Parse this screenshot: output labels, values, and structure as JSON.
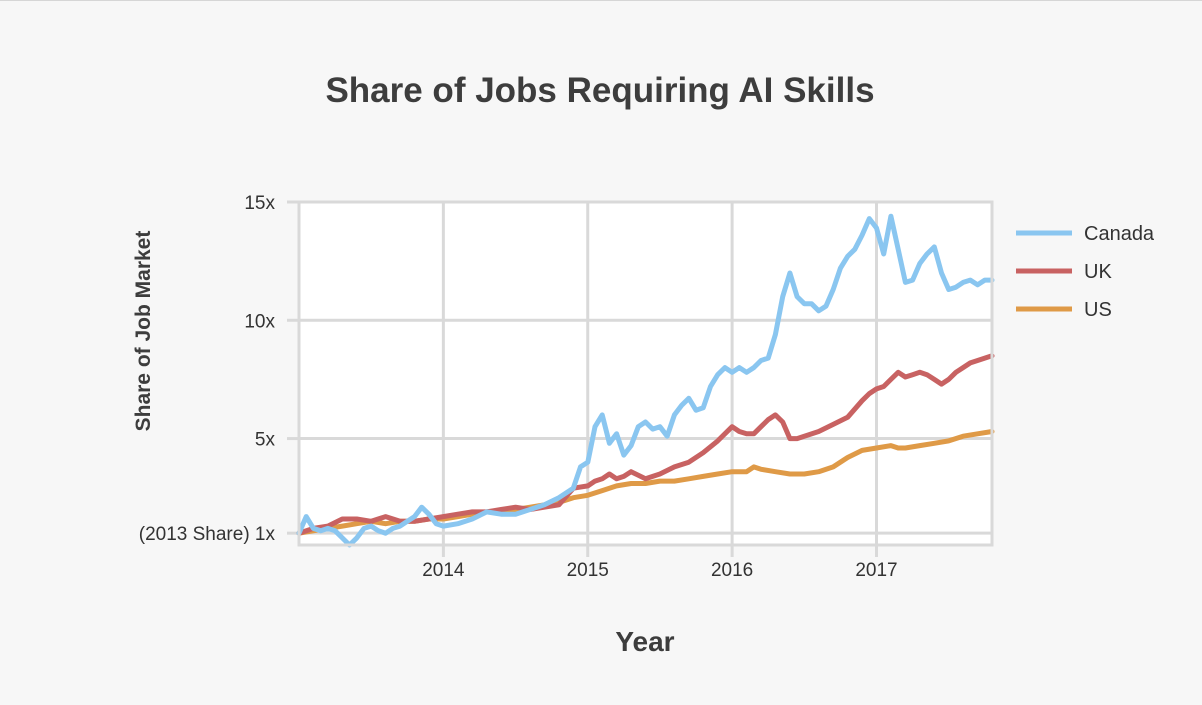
{
  "chart_data": {
    "type": "line",
    "title": "Share of Jobs Requiring AI Skills",
    "xlabel": "Year",
    "ylabel": "Share of Job Market",
    "xlim": [
      2013.0,
      2017.8
    ],
    "ylim": [
      0.5,
      15.0
    ],
    "x_ticks": [
      {
        "value": 2014,
        "label": "2014"
      },
      {
        "value": 2015,
        "label": "2015"
      },
      {
        "value": 2016,
        "label": "2016"
      },
      {
        "value": 2017,
        "label": "2017"
      }
    ],
    "y_ticks": [
      {
        "value": 1,
        "label": "(2013 Share) 1x"
      },
      {
        "value": 5,
        "label": "5x"
      },
      {
        "value": 10,
        "label": "10x"
      },
      {
        "value": 15,
        "label": "15x"
      }
    ],
    "grid": true,
    "legend_position": "right",
    "series": [
      {
        "name": "Canada",
        "color": "#8ac6f0",
        "x": [
          2013.0,
          2013.05,
          2013.1,
          2013.15,
          2013.2,
          2013.25,
          2013.3,
          2013.35,
          2013.4,
          2013.45,
          2013.5,
          2013.55,
          2013.6,
          2013.65,
          2013.7,
          2013.75,
          2013.8,
          2013.85,
          2013.9,
          2013.95,
          2014.0,
          2014.1,
          2014.2,
          2014.3,
          2014.4,
          2014.5,
          2014.6,
          2014.7,
          2014.8,
          2014.9,
          2014.95,
          2015.0,
          2015.05,
          2015.1,
          2015.15,
          2015.2,
          2015.25,
          2015.3,
          2015.35,
          2015.4,
          2015.45,
          2015.5,
          2015.55,
          2015.6,
          2015.65,
          2015.7,
          2015.75,
          2015.8,
          2015.85,
          2015.9,
          2015.95,
          2016.0,
          2016.05,
          2016.1,
          2016.15,
          2016.2,
          2016.25,
          2016.3,
          2016.35,
          2016.4,
          2016.45,
          2016.5,
          2016.55,
          2016.6,
          2016.65,
          2016.7,
          2016.75,
          2016.8,
          2016.85,
          2016.9,
          2016.95,
          2017.0,
          2017.05,
          2017.1,
          2017.15,
          2017.2,
          2017.25,
          2017.3,
          2017.35,
          2017.4,
          2017.45,
          2017.5,
          2017.55,
          2017.6,
          2017.65,
          2017.7,
          2017.75,
          2017.8
        ],
        "y": [
          1.0,
          1.7,
          1.2,
          1.1,
          1.2,
          1.1,
          0.8,
          0.5,
          0.8,
          1.2,
          1.3,
          1.1,
          1.0,
          1.2,
          1.3,
          1.5,
          1.7,
          2.1,
          1.8,
          1.4,
          1.3,
          1.4,
          1.6,
          1.9,
          1.8,
          1.8,
          2.0,
          2.2,
          2.5,
          2.9,
          3.8,
          4.0,
          5.5,
          6.0,
          4.8,
          5.2,
          4.3,
          4.7,
          5.5,
          5.7,
          5.4,
          5.5,
          5.1,
          6.0,
          6.4,
          6.7,
          6.2,
          6.3,
          7.2,
          7.7,
          8.0,
          7.8,
          8.0,
          7.8,
          8.0,
          8.3,
          8.4,
          9.4,
          11.0,
          12.0,
          11.0,
          10.7,
          10.7,
          10.4,
          10.6,
          11.3,
          12.2,
          12.7,
          13.0,
          13.6,
          14.3,
          13.9,
          12.8,
          14.4,
          13.0,
          11.6,
          11.7,
          12.4,
          12.8,
          13.1,
          12.0,
          11.3,
          11.4,
          11.6,
          11.7,
          11.5,
          11.7,
          11.7
        ]
      },
      {
        "name": "UK",
        "color": "#c86262",
        "x": [
          2013.0,
          2013.1,
          2013.2,
          2013.3,
          2013.4,
          2013.5,
          2013.6,
          2013.7,
          2013.8,
          2013.9,
          2014.0,
          2014.1,
          2014.2,
          2014.3,
          2014.4,
          2014.5,
          2014.6,
          2014.7,
          2014.8,
          2014.9,
          2015.0,
          2015.05,
          2015.1,
          2015.15,
          2015.2,
          2015.25,
          2015.3,
          2015.4,
          2015.5,
          2015.6,
          2015.7,
          2015.8,
          2015.9,
          2016.0,
          2016.05,
          2016.1,
          2016.15,
          2016.2,
          2016.25,
          2016.3,
          2016.35,
          2016.4,
          2016.45,
          2016.5,
          2016.6,
          2016.7,
          2016.8,
          2016.9,
          2016.95,
          2017.0,
          2017.05,
          2017.1,
          2017.15,
          2017.2,
          2017.25,
          2017.3,
          2017.35,
          2017.4,
          2017.45,
          2017.5,
          2017.55,
          2017.6,
          2017.65,
          2017.7,
          2017.75,
          2017.8
        ],
        "y": [
          1.0,
          1.2,
          1.3,
          1.6,
          1.6,
          1.5,
          1.7,
          1.5,
          1.5,
          1.6,
          1.7,
          1.8,
          1.9,
          1.9,
          2.0,
          2.1,
          2.0,
          2.1,
          2.2,
          2.9,
          3.0,
          3.2,
          3.3,
          3.5,
          3.3,
          3.4,
          3.6,
          3.3,
          3.5,
          3.8,
          4.0,
          4.4,
          4.9,
          5.5,
          5.3,
          5.2,
          5.2,
          5.5,
          5.8,
          6.0,
          5.7,
          5.0,
          5.0,
          5.1,
          5.3,
          5.6,
          5.9,
          6.6,
          6.9,
          7.1,
          7.2,
          7.5,
          7.8,
          7.6,
          7.7,
          7.8,
          7.7,
          7.5,
          7.3,
          7.5,
          7.8,
          8.0,
          8.2,
          8.3,
          8.4,
          8.5
        ]
      },
      {
        "name": "US",
        "color": "#df9a47",
        "x": [
          2013.0,
          2013.1,
          2013.2,
          2013.3,
          2013.4,
          2013.5,
          2013.6,
          2013.7,
          2013.8,
          2013.9,
          2014.0,
          2014.1,
          2014.2,
          2014.3,
          2014.4,
          2014.5,
          2014.6,
          2014.7,
          2014.8,
          2014.9,
          2015.0,
          2015.1,
          2015.2,
          2015.3,
          2015.4,
          2015.5,
          2015.6,
          2015.7,
          2015.8,
          2015.9,
          2016.0,
          2016.1,
          2016.15,
          2016.2,
          2016.3,
          2016.4,
          2016.5,
          2016.6,
          2016.7,
          2016.8,
          2016.9,
          2017.0,
          2017.1,
          2017.15,
          2017.2,
          2017.3,
          2017.4,
          2017.5,
          2017.6,
          2017.7,
          2017.8
        ],
        "y": [
          1.0,
          1.1,
          1.2,
          1.3,
          1.4,
          1.5,
          1.4,
          1.5,
          1.5,
          1.6,
          1.6,
          1.7,
          1.8,
          1.9,
          1.9,
          2.0,
          2.1,
          2.2,
          2.3,
          2.5,
          2.6,
          2.8,
          3.0,
          3.1,
          3.1,
          3.2,
          3.2,
          3.3,
          3.4,
          3.5,
          3.6,
          3.6,
          3.8,
          3.7,
          3.6,
          3.5,
          3.5,
          3.6,
          3.8,
          4.2,
          4.5,
          4.6,
          4.7,
          4.6,
          4.6,
          4.7,
          4.8,
          4.9,
          5.1,
          5.2,
          5.3
        ]
      }
    ]
  }
}
